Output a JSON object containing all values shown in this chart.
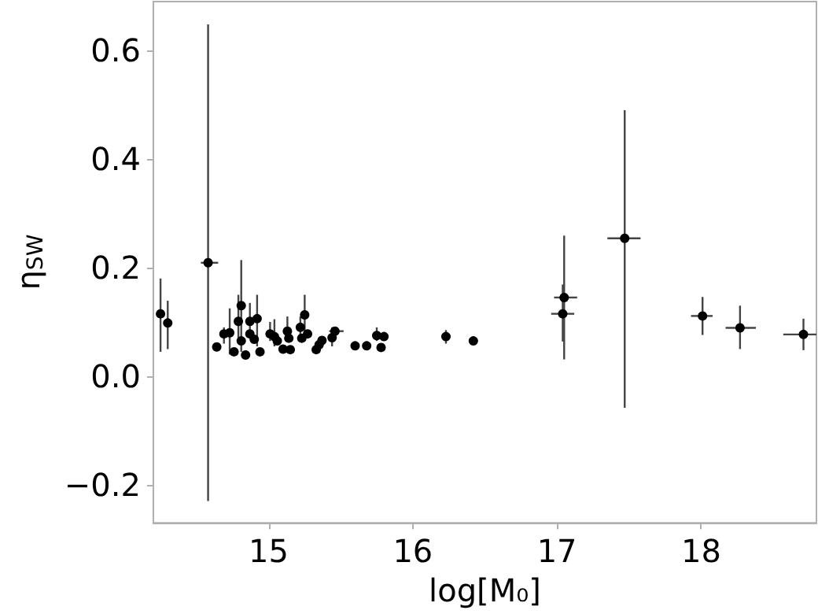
{
  "chart_data": {
    "type": "scatter",
    "xlabel": "log[M₀]",
    "ylabel": "η$_{SW}$",
    "xlim": [
      14.2,
      18.8
    ],
    "ylim": [
      -0.27,
      0.69
    ],
    "xticks": [
      15,
      16,
      17,
      18
    ],
    "yticks": [
      -0.2,
      {
        "value": 0,
        "label": "0.0"
      },
      0.2,
      0.4,
      0.6
    ],
    "grid": false,
    "marker": "circle",
    "series": [
      {
        "color": "#000000",
        "x": [
          14.25,
          14.3,
          14.58,
          14.64,
          14.69,
          14.73,
          14.76,
          14.79,
          14.81,
          14.81,
          14.84,
          14.87,
          14.87,
          14.9,
          14.92,
          14.94,
          15.01,
          15.04,
          15.06,
          15.1,
          15.13,
          15.14,
          15.15,
          15.22,
          15.23,
          15.25,
          15.27,
          15.33,
          15.35,
          15.37,
          15.44,
          15.46,
          15.6,
          15.68,
          15.75,
          15.78,
          15.8,
          16.23,
          16.42,
          17.05,
          17.04,
          17.47,
          18.01,
          18.27,
          18.71
        ],
        "values": [
          0.115,
          0.098,
          0.209,
          0.054,
          0.078,
          0.08,
          0.045,
          0.101,
          0.13,
          0.065,
          0.039,
          0.101,
          0.078,
          0.068,
          0.106,
          0.045,
          0.078,
          0.073,
          0.065,
          0.05,
          0.083,
          0.07,
          0.049,
          0.09,
          0.07,
          0.113,
          0.078,
          0.049,
          0.058,
          0.066,
          0.071,
          0.083,
          0.056,
          0.056,
          0.075,
          0.053,
          0.073,
          0.073,
          0.065,
          0.145,
          0.115,
          0.254,
          0.111,
          0.089,
          0.077
        ],
        "errors": [
          [
            0.045,
            0.18
          ],
          [
            0.05,
            0.139
          ],
          [
            -0.23,
            0.648
          ],
          null,
          [
            0.06,
            0.09
          ],
          [
            0.04,
            0.125
          ],
          null,
          [
            0.06,
            0.15
          ],
          [
            0.045,
            0.214
          ],
          null,
          null,
          [
            0.07,
            0.135
          ],
          null,
          null,
          [
            0.055,
            0.15
          ],
          null,
          [
            0.065,
            0.1
          ],
          [
            0.055,
            0.105
          ],
          null,
          null,
          [
            0.065,
            0.11
          ],
          null,
          null,
          [
            0.07,
            0.11
          ],
          null,
          [
            0.07,
            0.15
          ],
          null,
          null,
          null,
          null,
          [
            0.055,
            0.09
          ],
          null,
          null,
          null,
          [
            0.065,
            0.09
          ],
          null,
          null,
          [
            0.06,
            0.085
          ],
          [
            0.06,
            0.072
          ],
          [
            0.031,
            0.259
          ],
          [
            0.064,
            0.169
          ],
          [
            -0.058,
            0.49
          ],
          [
            0.076,
            0.146
          ],
          [
            0.05,
            0.13
          ],
          [
            0.048,
            0.106
          ]
        ],
        "xerrors": [
          null,
          null,
          [
            14.53,
            14.65
          ],
          null,
          null,
          null,
          null,
          null,
          null,
          null,
          null,
          null,
          null,
          null,
          null,
          null,
          null,
          null,
          null,
          null,
          null,
          null,
          null,
          null,
          null,
          null,
          null,
          null,
          null,
          null,
          null,
          [
            15.42,
            15.52
          ],
          null,
          null,
          [
            15.72,
            15.82
          ],
          null,
          null,
          [
            16.2,
            16.26
          ],
          [
            16.39,
            16.45
          ],
          [
            16.98,
            17.14
          ],
          [
            16.96,
            17.12
          ],
          [
            17.35,
            17.58
          ],
          [
            17.93,
            18.08
          ],
          [
            18.17,
            18.38
          ],
          [
            18.57,
            18.8
          ]
        ]
      }
    ]
  }
}
